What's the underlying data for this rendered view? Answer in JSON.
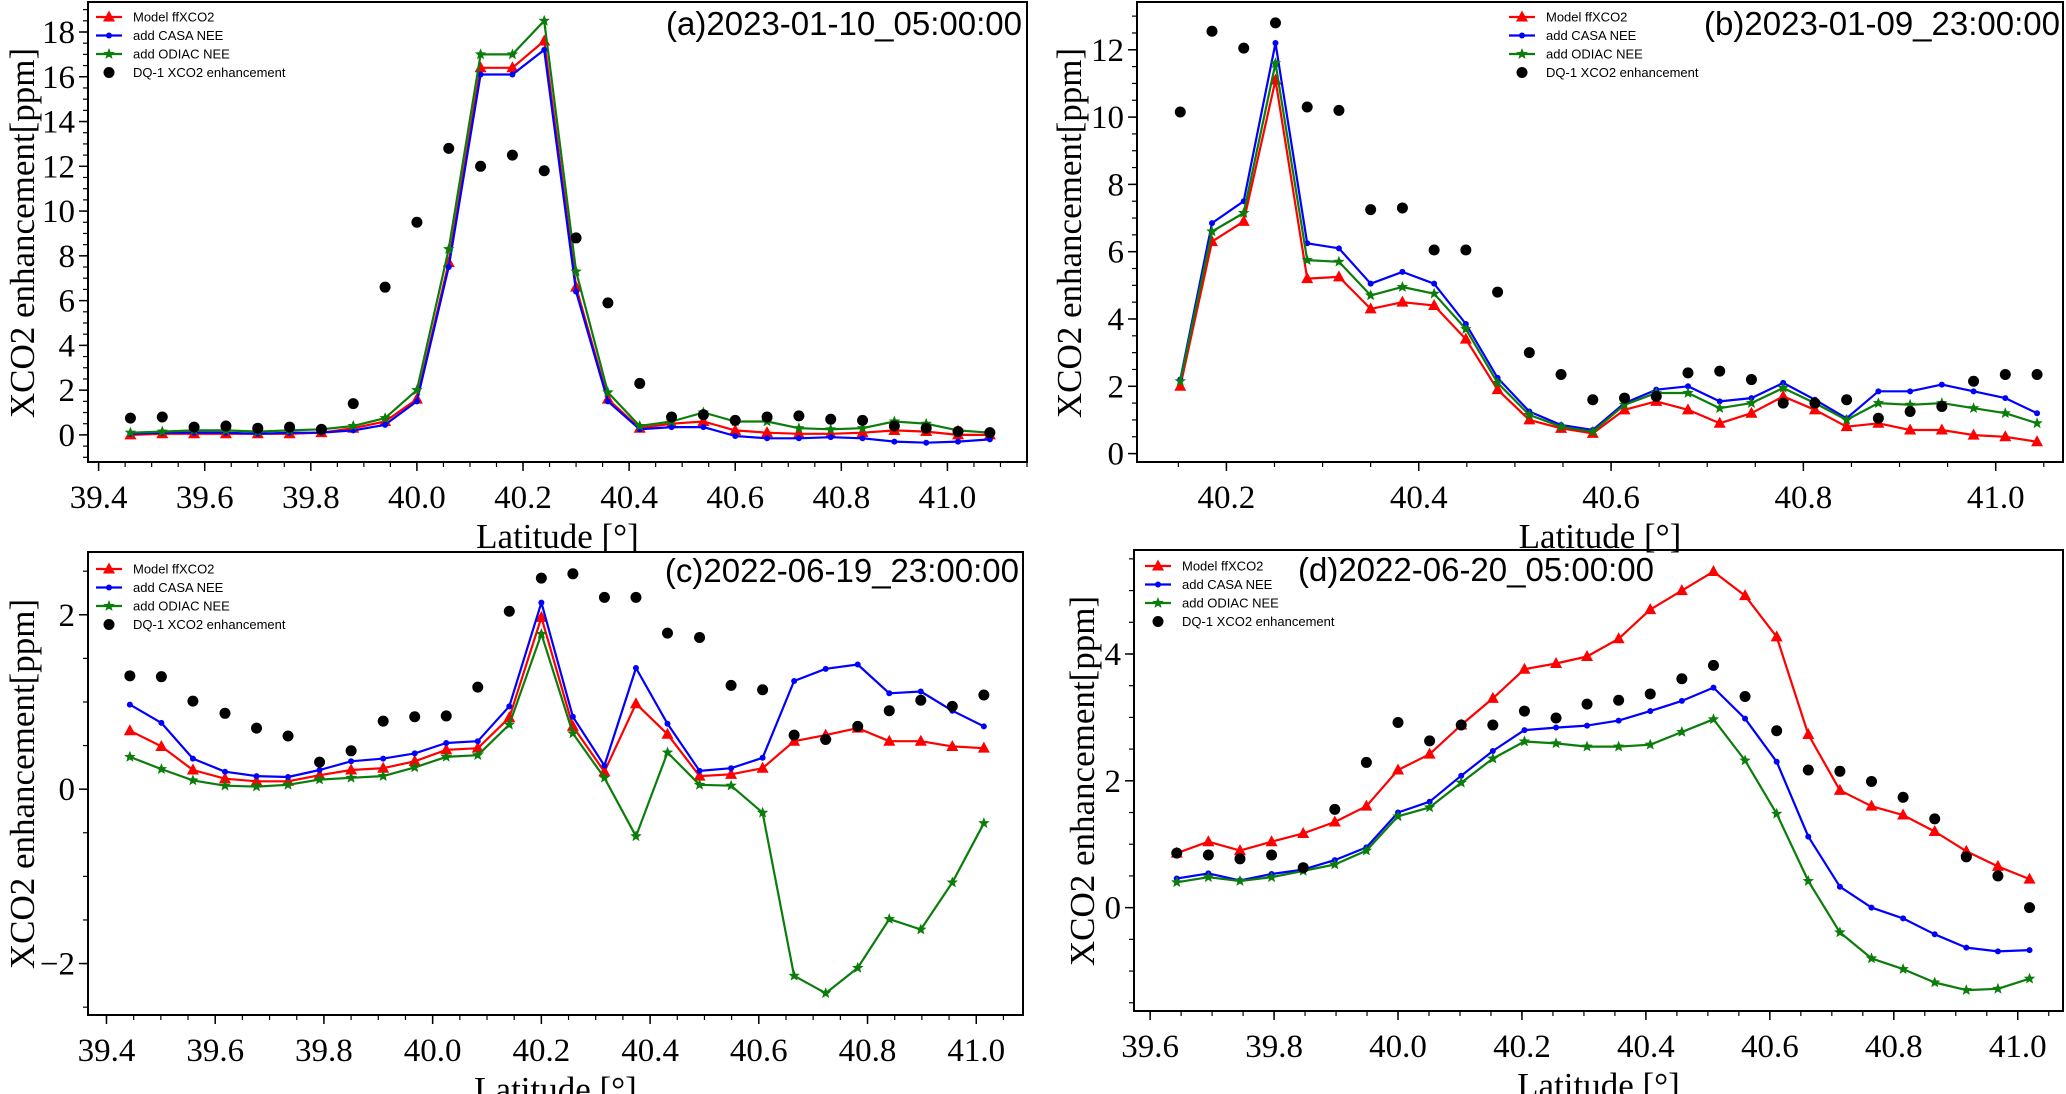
{
  "chart_data": [
    {
      "type": "line",
      "title": "(a)2023-01-10_05:00:00",
      "xlabel": "Latitude [°]",
      "ylabel": "XCO2 enhancement[ppm]",
      "xlim": [
        39.38,
        41.15
      ],
      "ylim": [
        -1.21,
        19.34
      ],
      "xticks": [
        "39.4",
        "39.6",
        "39.8",
        "40.0",
        "40.2",
        "40.4",
        "40.6",
        "40.8",
        "41.0"
      ],
      "yticks": [
        "0",
        "2",
        "4",
        "6",
        "8",
        "10",
        "12",
        "14",
        "16",
        "18"
      ],
      "legend": "top-left",
      "grid": false,
      "x": [
        39.46,
        39.52,
        39.58,
        39.64,
        39.7,
        39.76,
        39.82,
        39.88,
        39.94,
        40.0,
        40.06,
        40.12,
        40.18,
        40.24,
        40.3,
        40.36,
        40.42,
        40.48,
        40.54,
        40.6,
        40.66,
        40.72,
        40.78,
        40.84,
        40.9,
        40.96,
        41.02,
        41.08
      ],
      "series": [
        {
          "name": "Model ffXCO2",
          "color": "#ff0000",
          "marker": "triangle",
          "line": true,
          "values": [
            0,
            0.05,
            0.05,
            0.05,
            0.05,
            0.05,
            0.1,
            0.3,
            0.6,
            1.6,
            7.7,
            16.4,
            16.4,
            17.6,
            6.6,
            1.6,
            0.3,
            0.5,
            0.6,
            0.2,
            0.1,
            0.05,
            0.05,
            0.1,
            0.2,
            0.15,
            0,
            0
          ]
        },
        {
          "name": "add CASA NEE",
          "color": "#0000ff",
          "marker": "dot",
          "line": true,
          "values": [
            0.05,
            0.1,
            0.1,
            0.1,
            0.05,
            0.1,
            0.1,
            0.2,
            0.45,
            1.5,
            7.5,
            16.1,
            16.1,
            17.2,
            6.4,
            1.5,
            0.25,
            0.35,
            0.35,
            -0.05,
            -0.15,
            -0.15,
            -0.1,
            -0.15,
            -0.3,
            -0.35,
            -0.3,
            -0.2
          ]
        },
        {
          "name": "add ODIAC NEE",
          "color": "#0a7d0a",
          "marker": "star",
          "line": true,
          "values": [
            0.1,
            0.15,
            0.2,
            0.2,
            0.15,
            0.2,
            0.25,
            0.4,
            0.75,
            2.0,
            8.3,
            17.0,
            17.0,
            18.5,
            7.3,
            1.9,
            0.4,
            0.6,
            1.0,
            0.6,
            0.6,
            0.3,
            0.25,
            0.3,
            0.6,
            0.5,
            0.2,
            0.1
          ]
        },
        {
          "name": "DQ-1 XCO2 enhancement",
          "color": "#000000",
          "marker": "circle",
          "line": false,
          "values": [
            0.75,
            0.8,
            0.35,
            0.4,
            0.3,
            0.35,
            0.25,
            1.4,
            6.6,
            9.5,
            12.8,
            12.0,
            12.5,
            11.8,
            8.8,
            5.9,
            2.3,
            0.8,
            0.9,
            0.65,
            0.8,
            0.85,
            0.7,
            0.65,
            0.4,
            0.3,
            0.15,
            0.1
          ]
        }
      ]
    },
    {
      "type": "line",
      "title": "(b)2023-01-09_23:00:00",
      "xlabel": "Latitude [°]",
      "ylabel": "XCO2 enhancement[ppm]",
      "xlim": [
        40.107,
        41.07
      ],
      "ylim": [
        -0.25,
        13.42
      ],
      "xticks": [
        "40.2",
        "40.4",
        "40.6",
        "40.8",
        "41.0"
      ],
      "yticks": [
        "0",
        "2",
        "4",
        "6",
        "8",
        "10",
        "12"
      ],
      "legend": "top-center",
      "grid": false,
      "x": [
        40.152,
        40.185,
        40.218,
        40.251,
        40.284,
        40.317,
        40.35,
        40.383,
        40.416,
        40.449,
        40.482,
        40.515,
        40.548,
        40.581,
        40.614,
        40.647,
        40.68,
        40.713,
        40.746,
        40.779,
        40.812,
        40.845,
        40.878,
        40.911,
        40.944,
        40.977,
        41.01,
        41.043
      ],
      "series": [
        {
          "name": "Model ffXCO2",
          "color": "#ff0000",
          "marker": "triangle",
          "line": true,
          "values": [
            2.0,
            6.3,
            6.9,
            11.1,
            5.2,
            5.25,
            4.3,
            4.5,
            4.4,
            3.4,
            1.9,
            1.0,
            0.75,
            0.6,
            1.3,
            1.55,
            1.3,
            0.9,
            1.2,
            1.7,
            1.3,
            0.8,
            0.9,
            0.7,
            0.7,
            0.55,
            0.5,
            0.35
          ]
        },
        {
          "name": "add CASA NEE",
          "color": "#0000ff",
          "marker": "dot",
          "line": true,
          "values": [
            2.2,
            6.85,
            7.5,
            12.2,
            6.25,
            6.1,
            5.05,
            5.4,
            5.05,
            3.85,
            2.25,
            1.25,
            0.85,
            0.7,
            1.5,
            1.9,
            2.0,
            1.55,
            1.65,
            2.1,
            1.6,
            1.05,
            1.85,
            1.85,
            2.05,
            1.85,
            1.65,
            1.2
          ]
        },
        {
          "name": "add ODIAC NEE",
          "color": "#0a7d0a",
          "marker": "star",
          "line": true,
          "values": [
            2.15,
            6.6,
            7.15,
            11.6,
            5.75,
            5.7,
            4.7,
            4.95,
            4.75,
            3.7,
            2.1,
            1.15,
            0.8,
            0.65,
            1.45,
            1.8,
            1.8,
            1.35,
            1.5,
            1.95,
            1.5,
            1.0,
            1.5,
            1.45,
            1.5,
            1.35,
            1.2,
            0.9
          ]
        },
        {
          "name": "DQ-1 XCO2 enhancement",
          "color": "#000000",
          "marker": "circle",
          "line": false,
          "values": [
            10.15,
            12.55,
            12.05,
            12.8,
            10.3,
            10.2,
            7.25,
            7.3,
            6.05,
            6.05,
            4.8,
            3.0,
            2.35,
            1.6,
            1.65,
            1.7,
            2.4,
            2.45,
            2.2,
            1.5,
            1.5,
            1.6,
            1.05,
            1.25,
            1.4,
            2.15,
            2.35,
            2.35
          ]
        }
      ]
    },
    {
      "type": "line",
      "title": "(c)2022-06-19_23:00:00",
      "xlabel": "Latitude [°]",
      "ylabel": "XCO2 enhancement[ppm]",
      "xlim": [
        39.366,
        41.086
      ],
      "ylim": [
        -2.59,
        2.72
      ],
      "xticks": [
        "39.4",
        "39.6",
        "39.8",
        "40.0",
        "40.2",
        "40.4",
        "40.6",
        "40.8",
        "41.0"
      ],
      "yticks": [
        "−2",
        "0",
        "2"
      ],
      "legend": "top-left",
      "grid": false,
      "x": [
        39.443,
        39.501,
        39.559,
        39.618,
        39.676,
        39.734,
        39.792,
        39.85,
        39.909,
        39.967,
        40.025,
        40.083,
        40.141,
        40.2,
        40.258,
        40.316,
        40.374,
        40.432,
        40.491,
        40.549,
        40.607,
        40.665,
        40.723,
        40.782,
        40.84,
        40.898,
        40.956,
        41.014
      ],
      "series": [
        {
          "name": "Model ffXCO2",
          "color": "#ff0000",
          "marker": "triangle",
          "line": true,
          "values": [
            0.67,
            0.49,
            0.22,
            0.12,
            0.09,
            0.09,
            0.16,
            0.22,
            0.24,
            0.32,
            0.45,
            0.47,
            0.82,
            1.97,
            0.72,
            0.2,
            0.98,
            0.63,
            0.15,
            0.17,
            0.24,
            0.55,
            0.62,
            0.7,
            0.55,
            0.55,
            0.49,
            0.47
          ]
        },
        {
          "name": "add CASA NEE",
          "color": "#0000ff",
          "marker": "dot",
          "line": true,
          "values": [
            0.97,
            0.76,
            0.35,
            0.2,
            0.15,
            0.14,
            0.22,
            0.32,
            0.35,
            0.41,
            0.53,
            0.55,
            0.95,
            2.14,
            0.83,
            0.27,
            1.39,
            0.75,
            0.21,
            0.24,
            0.36,
            1.24,
            1.38,
            1.43,
            1.1,
            1.12,
            0.9,
            0.72
          ]
        },
        {
          "name": "add ODIAC NEE",
          "color": "#0a7d0a",
          "marker": "star",
          "line": true,
          "values": [
            0.37,
            0.23,
            0.1,
            0.04,
            0.03,
            0.05,
            0.11,
            0.13,
            0.15,
            0.25,
            0.37,
            0.39,
            0.74,
            1.78,
            0.64,
            0.13,
            -0.54,
            0.42,
            0.05,
            0.04,
            -0.27,
            -2.14,
            -2.34,
            -2.05,
            -1.49,
            -1.61,
            -1.07,
            -0.39
          ]
        },
        {
          "name": "DQ-1 XCO2 enhancement",
          "color": "#000000",
          "marker": "circle",
          "line": false,
          "values": [
            1.3,
            1.29,
            1.01,
            0.87,
            0.7,
            0.61,
            0.31,
            0.44,
            0.78,
            0.83,
            0.84,
            1.17,
            2.04,
            2.42,
            2.47,
            2.2,
            2.2,
            1.79,
            1.74,
            1.19,
            1.14,
            0.62,
            0.57,
            0.72,
            0.9,
            1.02,
            0.95,
            1.08
          ]
        }
      ]
    },
    {
      "type": "line",
      "title": "(d)2022-06-20_05:00:00",
      "xlabel": "Latitude [°]",
      "ylabel": "XCO2 enhancement[ppm]",
      "xlim": [
        39.574,
        41.073
      ],
      "ylim": [
        -1.63,
        5.64
      ],
      "xticks": [
        "39.6",
        "39.8",
        "40.0",
        "40.2",
        "40.4",
        "40.6",
        "40.8",
        "41.0"
      ],
      "yticks": [
        "0",
        "2",
        "4"
      ],
      "legend": "top-left",
      "grid": false,
      "x": [
        39.643,
        39.694,
        39.745,
        39.796,
        39.847,
        39.898,
        39.949,
        40.0,
        40.051,
        40.102,
        40.153,
        40.204,
        40.255,
        40.305,
        40.356,
        40.407,
        40.458,
        40.509,
        40.56,
        40.611,
        40.662,
        40.713,
        40.764,
        40.815,
        40.866,
        40.917,
        40.968,
        41.019
      ],
      "series": [
        {
          "name": "Model ffXCO2",
          "color": "#ff0000",
          "marker": "triangle",
          "line": true,
          "values": [
            0.86,
            1.04,
            0.9,
            1.04,
            1.17,
            1.35,
            1.6,
            2.17,
            2.42,
            2.88,
            3.3,
            3.76,
            3.85,
            3.96,
            4.24,
            4.7,
            5.0,
            5.3,
            4.92,
            4.27,
            2.73,
            1.85,
            1.6,
            1.46,
            1.2,
            0.89,
            0.65,
            0.45
          ]
        },
        {
          "name": "add CASA NEE",
          "color": "#0000ff",
          "marker": "dot",
          "line": true,
          "values": [
            0.46,
            0.54,
            0.43,
            0.53,
            0.6,
            0.75,
            0.95,
            1.5,
            1.67,
            2.08,
            2.47,
            2.8,
            2.84,
            2.87,
            2.95,
            3.1,
            3.26,
            3.47,
            2.98,
            2.3,
            1.12,
            0.33,
            0.0,
            -0.17,
            -0.42,
            -0.63,
            -0.69,
            -0.67
          ]
        },
        {
          "name": "add ODIAC NEE",
          "color": "#0a7d0a",
          "marker": "star",
          "line": true,
          "values": [
            0.4,
            0.48,
            0.42,
            0.48,
            0.58,
            0.68,
            0.9,
            1.44,
            1.58,
            1.97,
            2.35,
            2.62,
            2.59,
            2.54,
            2.54,
            2.57,
            2.77,
            2.97,
            2.32,
            1.48,
            0.42,
            -0.39,
            -0.8,
            -0.97,
            -1.18,
            -1.3,
            -1.28,
            -1.12
          ]
        },
        {
          "name": "DQ-1 XCO2 enhancement",
          "color": "#000000",
          "marker": "circle",
          "line": false,
          "values": [
            0.86,
            0.83,
            0.77,
            0.83,
            0.63,
            1.55,
            2.29,
            2.92,
            2.63,
            2.88,
            2.88,
            3.1,
            2.99,
            3.21,
            3.27,
            3.37,
            3.61,
            3.82,
            3.33,
            2.79,
            2.17,
            2.15,
            1.99,
            1.74,
            1.4,
            0.8,
            0.5,
            0.0
          ]
        }
      ]
    }
  ]
}
